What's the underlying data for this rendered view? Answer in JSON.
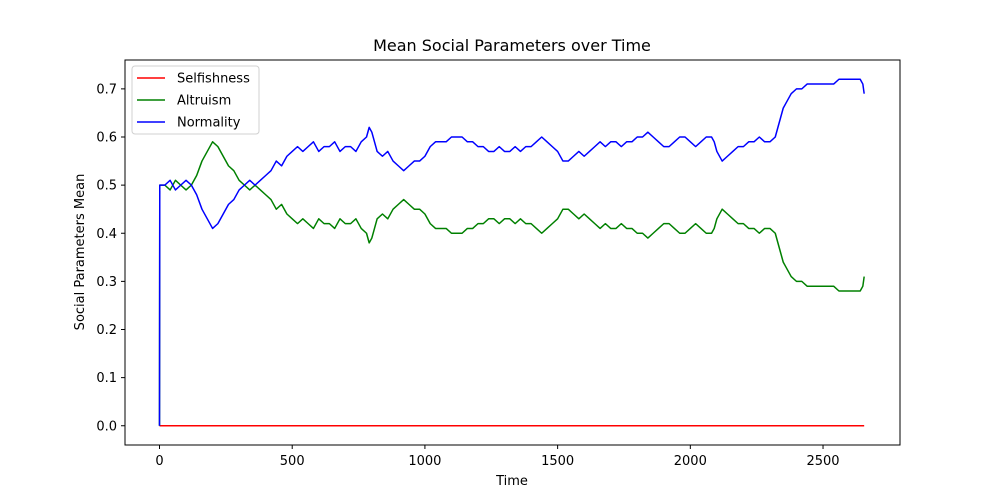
{
  "chart_data": {
    "type": "line",
    "title": "Mean Social Parameters over Time",
    "xlabel": "Time",
    "ylabel": "Social Parameters Mean",
    "xlim": [
      -130,
      2790
    ],
    "ylim": [
      -0.04,
      0.76
    ],
    "xticks": [
      0,
      500,
      1000,
      1500,
      2000,
      2500
    ],
    "yticks": [
      0.0,
      0.1,
      0.2,
      0.3,
      0.4,
      0.5,
      0.6,
      0.7
    ],
    "grid": false,
    "legend_position": "upper-left",
    "series": [
      {
        "name": "Selfishness",
        "color": "#ff0000",
        "x": [
          0,
          1,
          2655
        ],
        "y": [
          0.0,
          0.0,
          0.0
        ]
      },
      {
        "name": "Altruism",
        "color": "#008000",
        "x": [
          0,
          1,
          20,
          40,
          60,
          80,
          100,
          120,
          140,
          160,
          180,
          200,
          220,
          240,
          260,
          280,
          300,
          320,
          340,
          360,
          380,
          400,
          420,
          440,
          460,
          480,
          500,
          520,
          540,
          560,
          580,
          600,
          620,
          640,
          660,
          680,
          700,
          720,
          740,
          760,
          780,
          790,
          800,
          810,
          820,
          840,
          860,
          880,
          900,
          920,
          940,
          960,
          980,
          1000,
          1020,
          1040,
          1060,
          1080,
          1100,
          1120,
          1140,
          1160,
          1180,
          1200,
          1220,
          1240,
          1260,
          1280,
          1300,
          1320,
          1340,
          1360,
          1380,
          1400,
          1420,
          1440,
          1460,
          1480,
          1500,
          1520,
          1540,
          1560,
          1580,
          1600,
          1620,
          1640,
          1660,
          1680,
          1700,
          1720,
          1740,
          1760,
          1780,
          1800,
          1820,
          1840,
          1860,
          1880,
          1900,
          1920,
          1940,
          1960,
          1980,
          2000,
          2020,
          2040,
          2060,
          2080,
          2090,
          2100,
          2120,
          2140,
          2160,
          2180,
          2200,
          2220,
          2240,
          2260,
          2280,
          2300,
          2320,
          2330,
          2340,
          2350,
          2360,
          2380,
          2400,
          2420,
          2440,
          2460,
          2480,
          2500,
          2520,
          2540,
          2560,
          2580,
          2600,
          2620,
          2640,
          2650,
          2655
        ],
        "y": [
          0.0,
          0.5,
          0.5,
          0.49,
          0.51,
          0.5,
          0.49,
          0.5,
          0.52,
          0.55,
          0.57,
          0.59,
          0.58,
          0.56,
          0.54,
          0.53,
          0.51,
          0.5,
          0.49,
          0.5,
          0.49,
          0.48,
          0.47,
          0.45,
          0.46,
          0.44,
          0.43,
          0.42,
          0.43,
          0.42,
          0.41,
          0.43,
          0.42,
          0.42,
          0.41,
          0.43,
          0.42,
          0.42,
          0.43,
          0.41,
          0.4,
          0.38,
          0.39,
          0.41,
          0.43,
          0.44,
          0.43,
          0.45,
          0.46,
          0.47,
          0.46,
          0.45,
          0.45,
          0.44,
          0.42,
          0.41,
          0.41,
          0.41,
          0.4,
          0.4,
          0.4,
          0.41,
          0.41,
          0.42,
          0.42,
          0.43,
          0.43,
          0.42,
          0.43,
          0.43,
          0.42,
          0.43,
          0.42,
          0.42,
          0.41,
          0.4,
          0.41,
          0.42,
          0.43,
          0.45,
          0.45,
          0.44,
          0.43,
          0.44,
          0.43,
          0.42,
          0.41,
          0.42,
          0.41,
          0.41,
          0.42,
          0.41,
          0.41,
          0.4,
          0.4,
          0.39,
          0.4,
          0.41,
          0.42,
          0.42,
          0.41,
          0.4,
          0.4,
          0.41,
          0.42,
          0.41,
          0.4,
          0.4,
          0.41,
          0.43,
          0.45,
          0.44,
          0.43,
          0.42,
          0.42,
          0.41,
          0.41,
          0.4,
          0.41,
          0.41,
          0.4,
          0.38,
          0.36,
          0.34,
          0.33,
          0.31,
          0.3,
          0.3,
          0.29,
          0.29,
          0.29,
          0.29,
          0.29,
          0.29,
          0.28,
          0.28,
          0.28,
          0.28,
          0.28,
          0.29,
          0.31
        ]
      },
      {
        "name": "Normality",
        "color": "#0000ff",
        "x": [
          0,
          1,
          20,
          40,
          60,
          80,
          100,
          120,
          140,
          160,
          180,
          200,
          220,
          240,
          260,
          280,
          300,
          320,
          340,
          360,
          380,
          400,
          420,
          440,
          460,
          480,
          500,
          520,
          540,
          560,
          580,
          600,
          620,
          640,
          660,
          680,
          700,
          720,
          740,
          760,
          780,
          790,
          800,
          810,
          820,
          840,
          860,
          880,
          900,
          920,
          940,
          960,
          980,
          1000,
          1020,
          1040,
          1060,
          1080,
          1100,
          1120,
          1140,
          1160,
          1180,
          1200,
          1220,
          1240,
          1260,
          1280,
          1300,
          1320,
          1340,
          1360,
          1380,
          1400,
          1420,
          1440,
          1460,
          1480,
          1500,
          1520,
          1540,
          1560,
          1580,
          1600,
          1620,
          1640,
          1660,
          1680,
          1700,
          1720,
          1740,
          1760,
          1780,
          1800,
          1820,
          1840,
          1860,
          1880,
          1900,
          1920,
          1940,
          1960,
          1980,
          2000,
          2020,
          2040,
          2060,
          2080,
          2090,
          2100,
          2120,
          2140,
          2160,
          2180,
          2200,
          2220,
          2240,
          2260,
          2280,
          2300,
          2320,
          2330,
          2340,
          2350,
          2360,
          2380,
          2400,
          2420,
          2440,
          2460,
          2480,
          2500,
          2520,
          2540,
          2560,
          2580,
          2600,
          2620,
          2640,
          2650,
          2655
        ],
        "y": [
          0.0,
          0.5,
          0.5,
          0.51,
          0.49,
          0.5,
          0.51,
          0.5,
          0.48,
          0.45,
          0.43,
          0.41,
          0.42,
          0.44,
          0.46,
          0.47,
          0.49,
          0.5,
          0.51,
          0.5,
          0.51,
          0.52,
          0.53,
          0.55,
          0.54,
          0.56,
          0.57,
          0.58,
          0.57,
          0.58,
          0.59,
          0.57,
          0.58,
          0.58,
          0.59,
          0.57,
          0.58,
          0.58,
          0.57,
          0.59,
          0.6,
          0.62,
          0.61,
          0.59,
          0.57,
          0.56,
          0.57,
          0.55,
          0.54,
          0.53,
          0.54,
          0.55,
          0.55,
          0.56,
          0.58,
          0.59,
          0.59,
          0.59,
          0.6,
          0.6,
          0.6,
          0.59,
          0.59,
          0.58,
          0.58,
          0.57,
          0.57,
          0.58,
          0.57,
          0.57,
          0.58,
          0.57,
          0.58,
          0.58,
          0.59,
          0.6,
          0.59,
          0.58,
          0.57,
          0.55,
          0.55,
          0.56,
          0.57,
          0.56,
          0.57,
          0.58,
          0.59,
          0.58,
          0.59,
          0.59,
          0.58,
          0.59,
          0.59,
          0.6,
          0.6,
          0.61,
          0.6,
          0.59,
          0.58,
          0.58,
          0.59,
          0.6,
          0.6,
          0.59,
          0.58,
          0.59,
          0.6,
          0.6,
          0.59,
          0.57,
          0.55,
          0.56,
          0.57,
          0.58,
          0.58,
          0.59,
          0.59,
          0.6,
          0.59,
          0.59,
          0.6,
          0.62,
          0.64,
          0.66,
          0.67,
          0.69,
          0.7,
          0.7,
          0.71,
          0.71,
          0.71,
          0.71,
          0.71,
          0.71,
          0.72,
          0.72,
          0.72,
          0.72,
          0.72,
          0.71,
          0.69
        ]
      }
    ]
  }
}
